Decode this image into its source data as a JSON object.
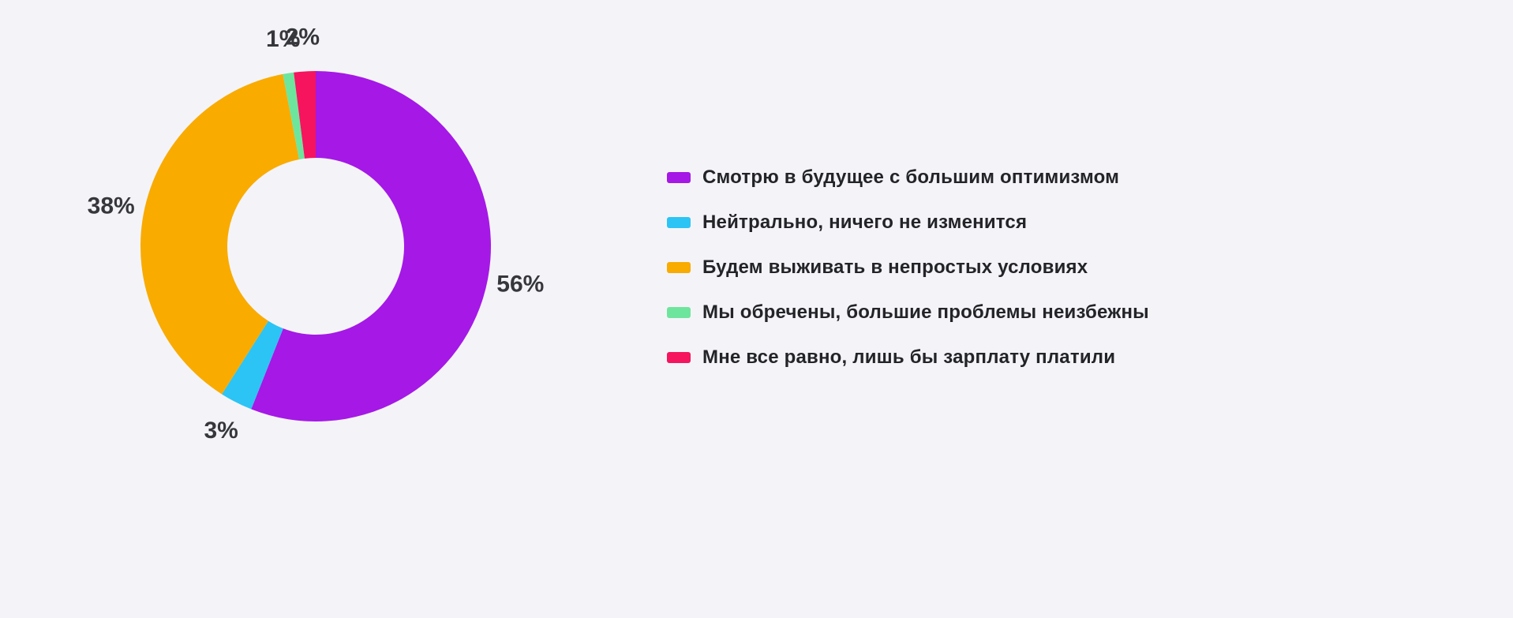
{
  "page": {
    "background": "#f4f4f8"
  },
  "chart_data": {
    "type": "pie",
    "donut": true,
    "title": "",
    "legend_position": "right",
    "start_angle_deg": 0,
    "direction": "clockwise",
    "total": 100,
    "segments": [
      {
        "label": "Смотрю в будущее с большим оптимизмом",
        "value": 56,
        "percent_label": "56%",
        "color": "#a518e6"
      },
      {
        "label": "Нейтрально, ничего не изменится",
        "value": 3,
        "percent_label": "3%",
        "color": "#2cc4f4"
      },
      {
        "label": "Будем выживать в непростых условиях",
        "value": 38,
        "percent_label": "38%",
        "color": "#f9ab00"
      },
      {
        "label": "Мы обречены, большие проблемы неизбежны",
        "value": 1,
        "percent_label": "1%",
        "color": "#6ee59d"
      },
      {
        "label": "Мне все равно, лишь бы зарплату платили",
        "value": 2,
        "percent_label": "2%",
        "color": "#f5145d"
      }
    ]
  }
}
